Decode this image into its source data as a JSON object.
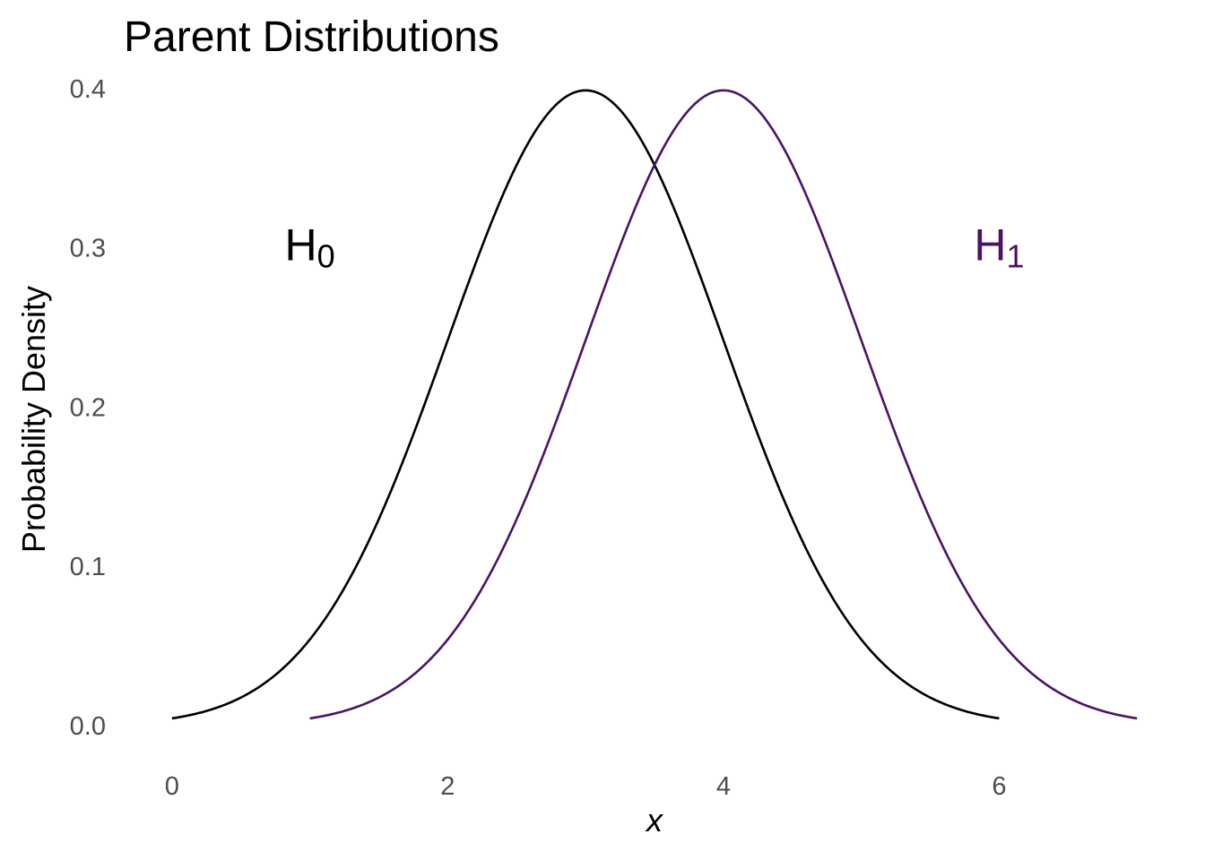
{
  "chart_data": {
    "type": "line",
    "title": "Parent Distributions",
    "xlabel": "x",
    "ylabel": "Probability Density",
    "xlim": [
      -0.35,
      7.35
    ],
    "ylim": [
      -0.017,
      0.4
    ],
    "x_ticks": [
      0,
      2,
      4,
      6
    ],
    "y_ticks": [
      0.0,
      0.1,
      0.2,
      0.3,
      0.4
    ],
    "x_tick_labels": [
      "0",
      "2",
      "4",
      "6"
    ],
    "y_tick_labels": [
      "0.0",
      "0.1",
      "0.2",
      "0.3",
      "0.4"
    ],
    "grid": false,
    "legend": "none",
    "series": [
      {
        "color": "#000000",
        "distribution": "normal",
        "mean": 3,
        "sd": 1,
        "x_range": [
          0,
          6
        ]
      },
      {
        "color": "#4b1365",
        "distribution": "normal",
        "mean": 4,
        "sd": 1,
        "x_range": [
          1,
          7
        ]
      }
    ],
    "annotations": [
      {
        "base": "H",
        "sub": "0",
        "x": 1.0,
        "y": 0.3,
        "color": "#000000"
      },
      {
        "base": "H",
        "sub": "1",
        "x": 6.0,
        "y": 0.3,
        "color": "#4b1365"
      }
    ]
  }
}
